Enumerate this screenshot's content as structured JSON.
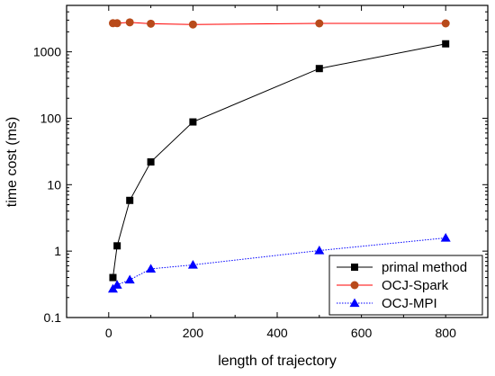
{
  "chart_data": {
    "type": "line",
    "title": "",
    "xlabel": "length of trajectory",
    "ylabel": "time cost (ms)",
    "xlim": [
      -100,
      900
    ],
    "ylim": [
      0.1,
      5000
    ],
    "yscale": "log",
    "xticks": [
      0,
      200,
      400,
      600,
      800
    ],
    "xtick_labels": [
      "0",
      "200",
      "400",
      "600",
      "800"
    ],
    "yticks": [
      0.1,
      1,
      10,
      100,
      1000
    ],
    "ytick_labels": [
      "0.1",
      "1",
      "10",
      "100",
      "1000"
    ],
    "grid": false,
    "legend_position": "bottom-right",
    "series": [
      {
        "name": "primal method",
        "color": "#000000",
        "marker": "square",
        "line_style": "solid",
        "x": [
          10,
          20,
          50,
          100,
          200,
          500,
          800
        ],
        "y": [
          0.4,
          1.2,
          5.8,
          22,
          88,
          560,
          1320
        ]
      },
      {
        "name": "OCJ-Spark",
        "color": "#ff0000",
        "marker_color": "#b84a1a",
        "marker": "circle",
        "line_style": "solid",
        "x": [
          10,
          20,
          50,
          100,
          200,
          500,
          800
        ],
        "y": [
          2700,
          2700,
          2780,
          2650,
          2580,
          2680,
          2680
        ]
      },
      {
        "name": "OCJ-MPI",
        "color": "#0000ff",
        "marker": "triangle",
        "line_style": "dotted",
        "x": [
          10,
          20,
          50,
          100,
          200,
          500,
          800
        ],
        "y": [
          0.27,
          0.31,
          0.37,
          0.54,
          0.62,
          1.02,
          1.58
        ]
      }
    ]
  }
}
